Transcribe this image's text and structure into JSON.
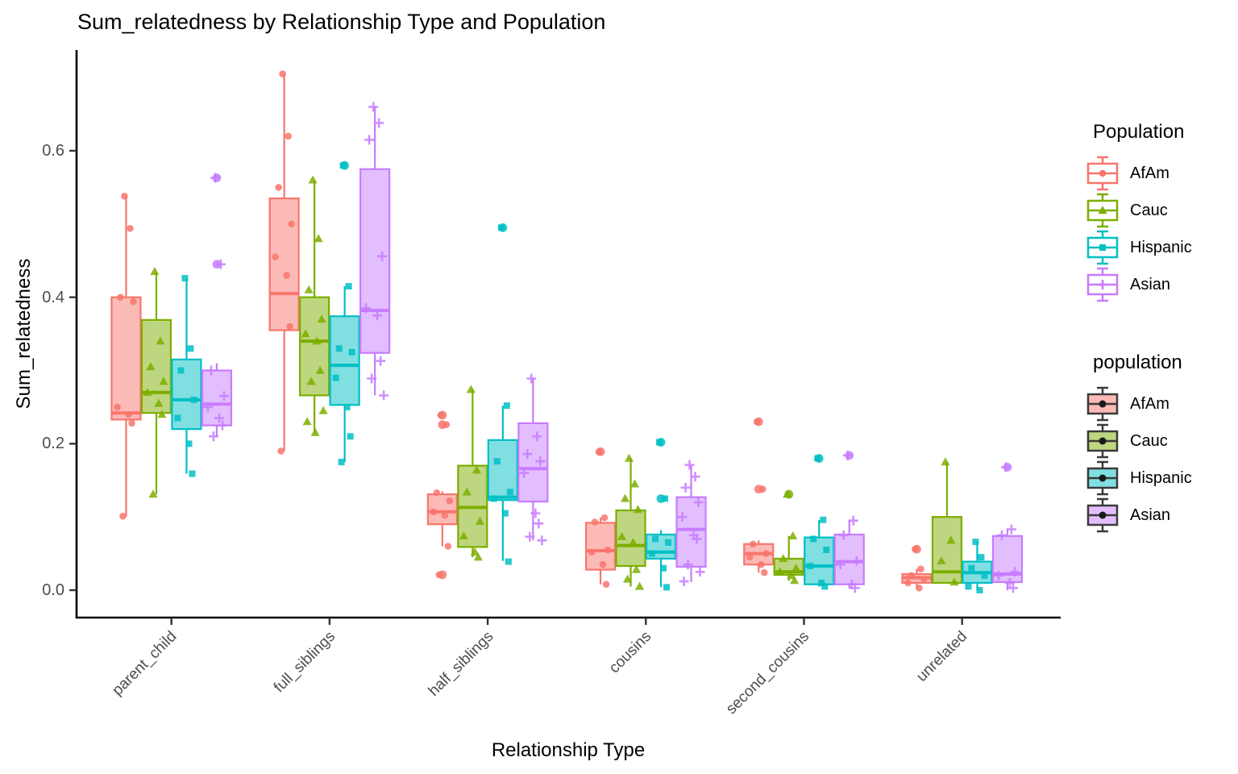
{
  "chart_data": {
    "type": "grouped_boxplot_with_jitter",
    "title": "Sum_relatedness by Relationship Type and Population",
    "xlabel": "Relationship Type",
    "ylabel": "Sum_relatedness",
    "categories": [
      "parent_child",
      "full_siblings",
      "half_siblings",
      "cousins",
      "second_cousins",
      "unrelated"
    ],
    "y_ticks": [
      {
        "label": "0.0",
        "value": 0.0
      },
      {
        "label": "0.2",
        "value": 0.2
      },
      {
        "label": "0.4",
        "value": 0.4
      },
      {
        "label": "0.6",
        "value": 0.6
      }
    ],
    "ylim": [
      -0.04,
      0.74
    ],
    "grid": false,
    "legend_position": "right",
    "series": [
      {
        "name": "AfAm",
        "shape": "circle",
        "color": "#F8766D",
        "fill": "#FCBAB6",
        "boxes": [
          {
            "lo": 0.101,
            "q1": 0.233,
            "med": 0.242,
            "q3": 0.4,
            "hi": 0.538,
            "outliers": [],
            "points": [
              0.538,
              0.494,
              0.4,
              0.394,
              0.25,
              0.24,
              0.228,
              0.101
            ]
          },
          {
            "lo": 0.19,
            "q1": 0.355,
            "med": 0.405,
            "q3": 0.535,
            "hi": 0.705,
            "outliers": [],
            "points": [
              0.705,
              0.62,
              0.55,
              0.5,
              0.455,
              0.43,
              0.36,
              0.19
            ]
          },
          {
            "lo": 0.06,
            "q1": 0.09,
            "med": 0.107,
            "q3": 0.131,
            "hi": 0.135,
            "outliers": [
              0.239,
              0.226,
              0.021
            ],
            "points": [
              0.239,
              0.226,
              0.133,
              0.122,
              0.107,
              0.102,
              0.06,
              0.021
            ]
          },
          {
            "lo": 0.008,
            "q1": 0.028,
            "med": 0.054,
            "q3": 0.092,
            "hi": 0.099,
            "outliers": [
              0.189
            ],
            "points": [
              0.189,
              0.099,
              0.093,
              0.055,
              0.052,
              0.035,
              0.008
            ]
          },
          {
            "lo": 0.024,
            "q1": 0.035,
            "med": 0.05,
            "q3": 0.063,
            "hi": 0.068,
            "outliers": [
              0.23,
              0.138
            ],
            "points": [
              0.23,
              0.138,
              0.063,
              0.05,
              0.045,
              0.035,
              0.024
            ]
          },
          {
            "lo": 0.002,
            "q1": 0.01,
            "med": 0.017,
            "q3": 0.022,
            "hi": 0.029,
            "outliers": [
              0.056
            ],
            "points": [
              0.056,
              0.029,
              0.02,
              0.015,
              0.01,
              0.003
            ]
          }
        ]
      },
      {
        "name": "Cauc",
        "shape": "triangle",
        "color": "#7CAE00",
        "fill": "#BED680",
        "boxes": [
          {
            "lo": 0.131,
            "q1": 0.242,
            "med": 0.27,
            "q3": 0.369,
            "hi": 0.435,
            "outliers": [],
            "points": [
              0.435,
              0.34,
              0.305,
              0.285,
              0.27,
              0.255,
              0.24,
              0.131
            ]
          },
          {
            "lo": 0.215,
            "q1": 0.266,
            "med": 0.34,
            "q3": 0.4,
            "hi": 0.56,
            "outliers": [],
            "points": [
              0.56,
              0.48,
              0.41,
              0.37,
              0.35,
              0.34,
              0.3,
              0.285,
              0.245,
              0.23,
              0.215
            ]
          },
          {
            "lo": 0.045,
            "q1": 0.059,
            "med": 0.113,
            "q3": 0.17,
            "hi": 0.274,
            "outliers": [],
            "points": [
              0.274,
              0.164,
              0.134,
              0.094,
              0.074,
              0.052,
              0.045
            ]
          },
          {
            "lo": 0.005,
            "q1": 0.033,
            "med": 0.061,
            "q3": 0.109,
            "hi": 0.18,
            "outliers": [],
            "points": [
              0.18,
              0.145,
              0.125,
              0.11,
              0.073,
              0.065,
              0.028,
              0.015,
              0.005
            ]
          },
          {
            "lo": 0.013,
            "q1": 0.021,
            "med": 0.025,
            "q3": 0.043,
            "hi": 0.074,
            "outliers": [
              0.131
            ],
            "points": [
              0.131,
              0.074,
              0.043,
              0.03,
              0.025,
              0.02,
              0.013
            ]
          },
          {
            "lo": 0.01,
            "q1": 0.01,
            "med": 0.025,
            "q3": 0.1,
            "hi": 0.175,
            "outliers": [],
            "points": [
              0.175,
              0.068,
              0.04,
              0.011
            ]
          }
        ]
      },
      {
        "name": "Hispanic",
        "shape": "square",
        "color": "#00BFC4",
        "fill": "#80DFE1",
        "boxes": [
          {
            "lo": 0.159,
            "q1": 0.22,
            "med": 0.26,
            "q3": 0.315,
            "hi": 0.426,
            "outliers": [],
            "points": [
              0.426,
              0.33,
              0.3,
              0.26,
              0.235,
              0.2,
              0.159
            ]
          },
          {
            "lo": 0.175,
            "q1": 0.253,
            "med": 0.307,
            "q3": 0.374,
            "hi": 0.415,
            "outliers": [
              0.58
            ],
            "points": [
              0.58,
              0.415,
              0.33,
              0.325,
              0.29,
              0.25,
              0.21,
              0.175
            ]
          },
          {
            "lo": 0.04,
            "q1": 0.123,
            "med": 0.127,
            "q3": 0.205,
            "hi": 0.252,
            "outliers": [
              0.495
            ],
            "points": [
              0.495,
              0.252,
              0.176,
              0.134,
              0.125,
              0.105,
              0.039
            ]
          },
          {
            "lo": 0.004,
            "q1": 0.043,
            "med": 0.052,
            "q3": 0.076,
            "hi": 0.082,
            "outliers": [
              0.202,
              0.125
            ],
            "points": [
              0.202,
              0.125,
              0.07,
              0.065,
              0.05,
              0.03,
              0.004
            ]
          },
          {
            "lo": 0.005,
            "q1": 0.008,
            "med": 0.033,
            "q3": 0.072,
            "hi": 0.096,
            "outliers": [
              0.18
            ],
            "points": [
              0.18,
              0.096,
              0.07,
              0.055,
              0.033,
              0.01,
              0.005
            ]
          },
          {
            "lo": 0.0,
            "q1": 0.01,
            "med": 0.024,
            "q3": 0.039,
            "hi": 0.066,
            "outliers": [],
            "points": [
              0.066,
              0.045,
              0.03,
              0.02,
              0.005,
              0.0
            ]
          }
        ]
      },
      {
        "name": "Asian",
        "shape": "plus",
        "color": "#C77CFF",
        "fill": "#E3BEFF",
        "boxes": [
          {
            "lo": 0.209,
            "q1": 0.225,
            "med": 0.254,
            "q3": 0.3,
            "hi": 0.31,
            "outliers": [
              0.563,
              0.445
            ],
            "points": [
              0.563,
              0.445,
              0.3,
              0.265,
              0.25,
              0.235,
              0.225,
              0.21
            ]
          },
          {
            "lo": 0.266,
            "q1": 0.324,
            "med": 0.382,
            "q3": 0.575,
            "hi": 0.66,
            "outliers": [],
            "points": [
              0.66,
              0.638,
              0.615,
              0.456,
              0.385,
              0.375,
              0.313,
              0.289,
              0.266
            ]
          },
          {
            "lo": 0.068,
            "q1": 0.121,
            "med": 0.166,
            "q3": 0.228,
            "hi": 0.289,
            "outliers": [],
            "points": [
              0.289,
              0.21,
              0.186,
              0.176,
              0.16,
              0.105,
              0.091,
              0.073,
              0.068
            ]
          },
          {
            "lo": 0.011,
            "q1": 0.032,
            "med": 0.083,
            "q3": 0.127,
            "hi": 0.171,
            "outliers": [],
            "points": [
              0.171,
              0.155,
              0.14,
              0.12,
              0.1,
              0.075,
              0.07,
              0.035,
              0.025,
              0.012
            ]
          },
          {
            "lo": 0.002,
            "q1": 0.008,
            "med": 0.039,
            "q3": 0.076,
            "hi": 0.096,
            "outliers": [
              0.184
            ],
            "points": [
              0.184,
              0.095,
              0.075,
              0.04,
              0.035,
              0.008,
              0.003
            ]
          },
          {
            "lo": 0.0,
            "q1": 0.011,
            "med": 0.022,
            "q3": 0.074,
            "hi": 0.083,
            "outliers": [
              0.168
            ],
            "points": [
              0.168,
              0.083,
              0.075,
              0.025,
              0.02,
              0.01,
              0.003
            ]
          }
        ]
      }
    ],
    "legends": [
      {
        "id": "shape",
        "title": "Population",
        "items": [
          {
            "label": "AfAm",
            "color": "#F8766D",
            "shape": "circle"
          },
          {
            "label": "Cauc",
            "color": "#7CAE00",
            "shape": "triangle"
          },
          {
            "label": "Hispanic",
            "color": "#00BFC4",
            "shape": "square"
          },
          {
            "label": "Asian",
            "color": "#C77CFF",
            "shape": "plus"
          }
        ]
      },
      {
        "id": "fill",
        "title": "population",
        "items": [
          {
            "label": "AfAm",
            "fill": "#FCBAB6"
          },
          {
            "label": "Cauc",
            "fill": "#BED680"
          },
          {
            "label": "Hispanic",
            "fill": "#80DFE1"
          },
          {
            "label": "Asian",
            "fill": "#E3BEFF"
          }
        ]
      }
    ],
    "colors": {
      "axis_line": "#000000",
      "tick_mark": "#333333",
      "tick_label": "#4D4D4D",
      "legend_key_outline": "#3A3A3A"
    }
  }
}
